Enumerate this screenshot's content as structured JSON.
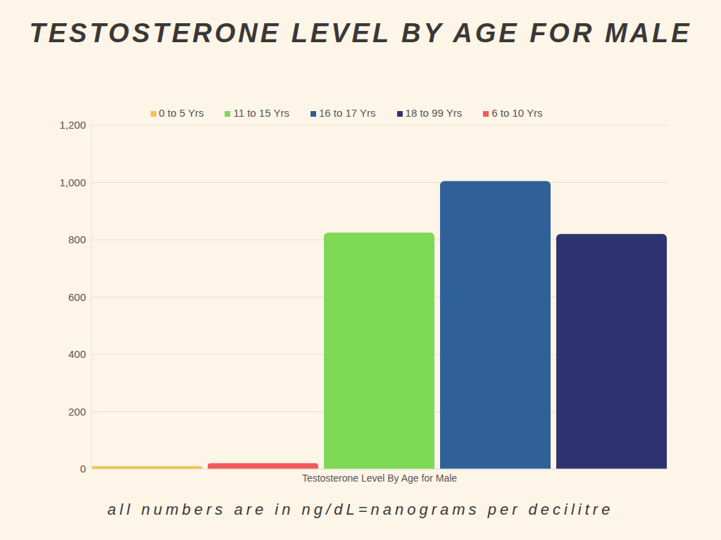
{
  "chart_data": {
    "type": "bar",
    "title": "TESTOSTERONE LEVEL BY AGE FOR MALE",
    "categories": [
      "Testosterone Level By Age for Male"
    ],
    "series": [
      {
        "name": "0 to 5 Yrs",
        "color": "#f4c152",
        "values": [
          10
        ]
      },
      {
        "name": "6 to 10 Yrs",
        "color": "#f25a5a",
        "values": [
          20
        ]
      },
      {
        "name": "11 to 15 Yrs",
        "color": "#7ed957",
        "values": [
          825
        ]
      },
      {
        "name": "16 to 17 Yrs",
        "color": "#2f6098",
        "values": [
          1005
        ]
      },
      {
        "name": "18 to 99 Yrs",
        "color": "#2e3470",
        "values": [
          820
        ]
      }
    ],
    "ylim": [
      0,
      1200
    ],
    "yticks": [
      0,
      200,
      400,
      600,
      800,
      {
        "value": 1000,
        "label": "1,000"
      },
      {
        "value": 1200,
        "label": "1,200"
      }
    ],
    "grid": true,
    "legend": "top",
    "annotations": [
      "all numbers are in ng/dL=nanograms per decilitre"
    ]
  }
}
